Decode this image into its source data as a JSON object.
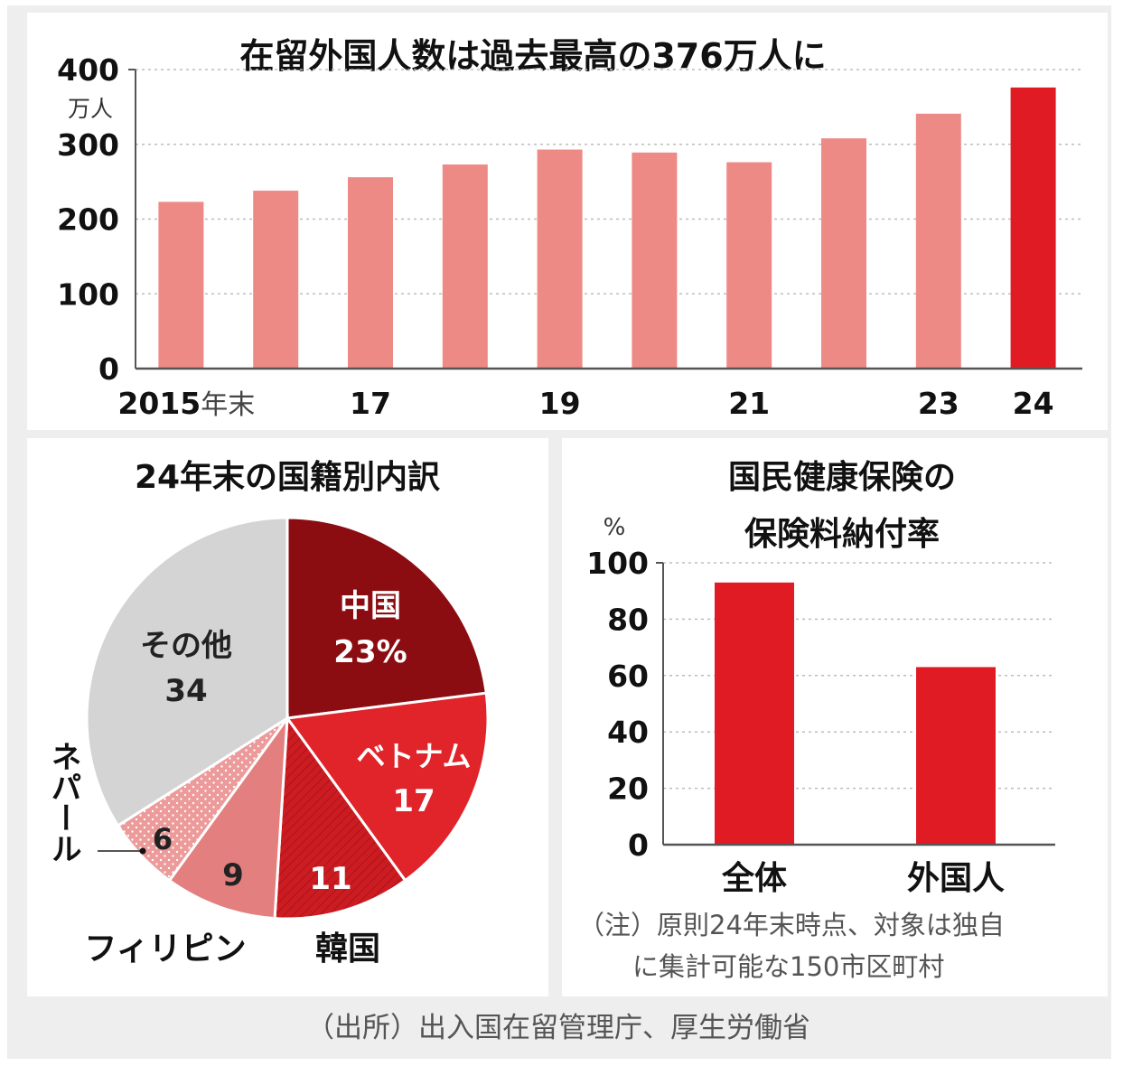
{
  "source": "（出所）出入国在留管理庁、厚生労働省",
  "colors": {
    "bar_light": "#ed8a86",
    "bar_highlight": "#e01b24",
    "china": "#8b0d12",
    "vietnam": "#e1232a",
    "korea": "#cc1c22",
    "philippines": "#e47f7f",
    "nepal": "#ec9a9a",
    "other": "#d4d4d4",
    "grid": "#bdbdbd",
    "axis": "#555555"
  },
  "chart_data": [
    {
      "type": "bar",
      "title": "在留外国人数は過去最高の376万人に",
      "ylabel": "万人",
      "ylim": [
        0,
        400
      ],
      "yticks": [
        "0",
        "100",
        "200",
        "300",
        "400"
      ],
      "categories": [
        "2015",
        "2016",
        "2017",
        "2018",
        "2019",
        "2020",
        "2021",
        "2022",
        "2023",
        "2024"
      ],
      "x_tick_labels": [
        {
          "index": 0,
          "text": "2015",
          "suffix": "年末"
        },
        {
          "index": 2,
          "text": "17"
        },
        {
          "index": 4,
          "text": "19"
        },
        {
          "index": 6,
          "text": "21"
        },
        {
          "index": 8,
          "text": "23"
        },
        {
          "index": 9,
          "text": "24"
        }
      ],
      "values": [
        223,
        238,
        256,
        273,
        293,
        289,
        276,
        308,
        341,
        376
      ],
      "highlight_index": 9,
      "grid": true
    },
    {
      "type": "pie",
      "title": "24年末の国籍別内訳",
      "slices": [
        {
          "label": "中国",
          "value": 23,
          "value_text": "23%",
          "color_key": "china",
          "text_color": "#ffffff"
        },
        {
          "label": "ベトナム",
          "value": 17,
          "value_text": "17",
          "color_key": "vietnam",
          "text_color": "#ffffff"
        },
        {
          "label": "韓国",
          "value": 11,
          "value_text": "11",
          "color_key": "korea",
          "text_color": "#ffffff"
        },
        {
          "label": "フィリピン",
          "value": 9,
          "value_text": "9",
          "color_key": "philippines",
          "text_color": "#222222"
        },
        {
          "label": "ネパール",
          "value": 6,
          "value_text": "6",
          "color_key": "nepal",
          "text_color": "#222222"
        },
        {
          "label": "その他",
          "value": 34,
          "value_text": "34",
          "color_key": "other",
          "text_color": "#222222"
        }
      ]
    },
    {
      "type": "bar",
      "title": [
        "国民健康保険の",
        "保険料納付率"
      ],
      "ylabel": "%",
      "ylim": [
        0,
        100
      ],
      "yticks": [
        "0",
        "20",
        "40",
        "60",
        "80",
        "100"
      ],
      "categories": [
        "全体",
        "外国人"
      ],
      "values": [
        93,
        63
      ],
      "grid": true,
      "note": [
        "（注）原則24年末時点、対象は独自",
        "に集計可能な150市区町村"
      ]
    }
  ]
}
